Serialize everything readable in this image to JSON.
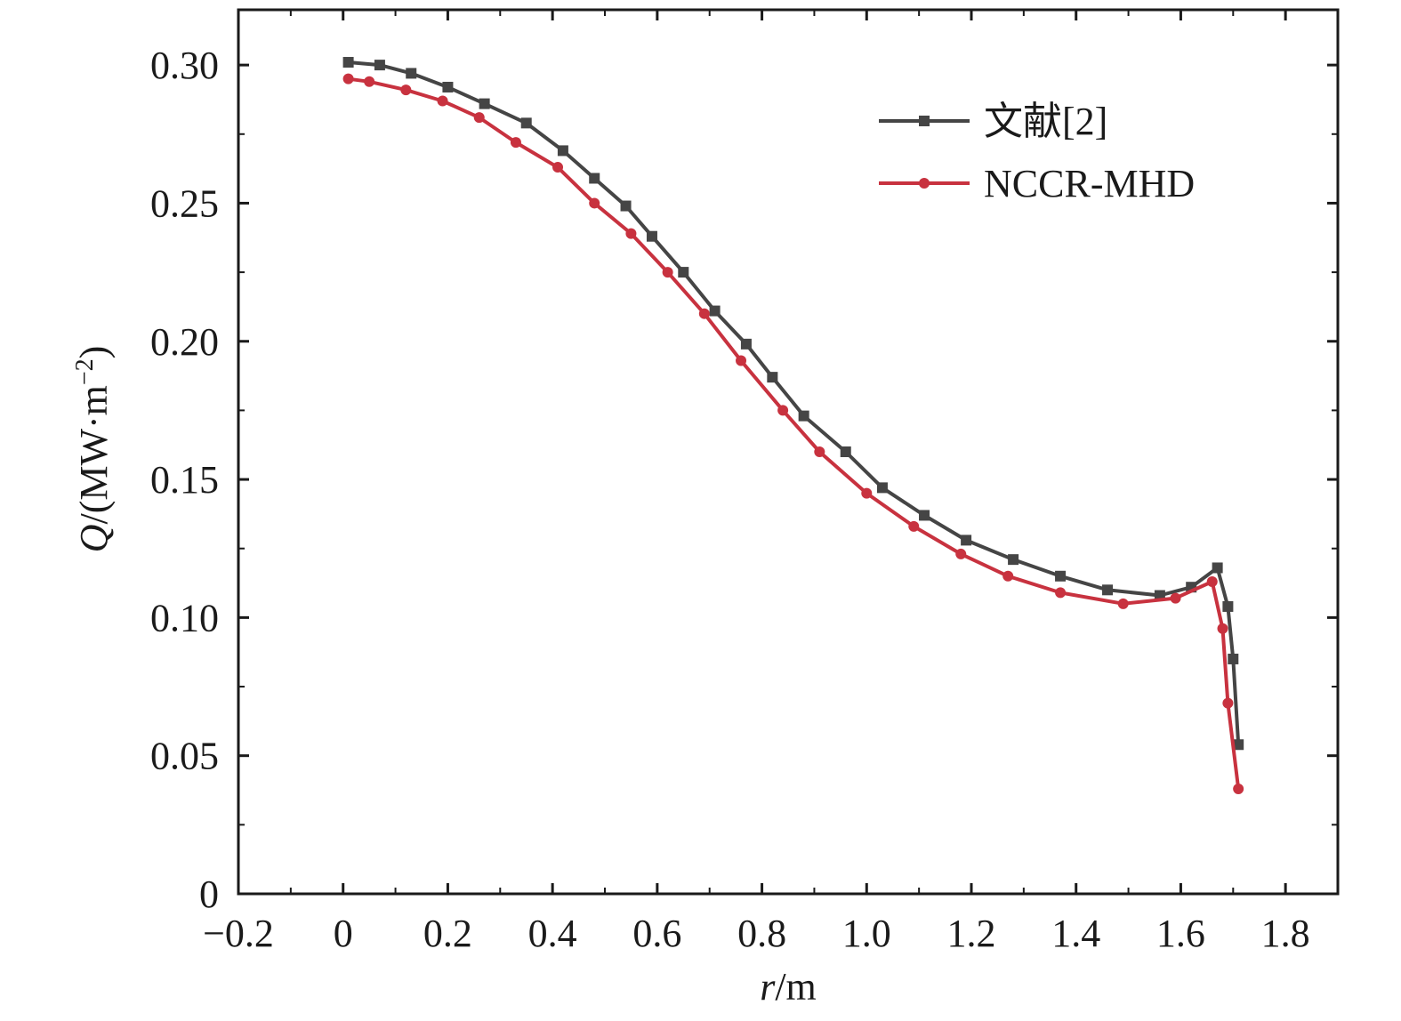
{
  "chart_data": {
    "type": "line",
    "xlabel": {
      "var": "r",
      "unit": "/m"
    },
    "ylabel": {
      "var": "Q",
      "unit": "/(MW·m",
      "exp": "−2",
      "close": ")"
    },
    "xlim": [
      -0.2,
      1.9
    ],
    "ylim": [
      0,
      0.32
    ],
    "x_ticks": [
      -0.2,
      0,
      0.2,
      0.4,
      0.6,
      0.8,
      1.0,
      1.2,
      1.4,
      1.6,
      1.8
    ],
    "x_tick_labels": [
      "−0.2",
      "0",
      "0.2",
      "0.4",
      "0.6",
      "0.8",
      "1.0",
      "1.2",
      "1.4",
      "1.6",
      "1.8"
    ],
    "y_ticks": [
      0,
      0.05,
      0.1,
      0.15,
      0.2,
      0.25,
      0.3
    ],
    "y_tick_labels": [
      "0",
      "0.05",
      "0.10",
      "0.15",
      "0.20",
      "0.25",
      "0.30"
    ],
    "grid": false,
    "legend_position": "top-right",
    "series": [
      {
        "name": "文献[2]",
        "color": "#454545",
        "marker": "square",
        "x": [
          0.01,
          0.07,
          0.13,
          0.2,
          0.27,
          0.35,
          0.42,
          0.48,
          0.54,
          0.59,
          0.65,
          0.71,
          0.77,
          0.82,
          0.88,
          0.96,
          1.03,
          1.11,
          1.19,
          1.28,
          1.37,
          1.46,
          1.56,
          1.62,
          1.67,
          1.69,
          1.7,
          1.71
        ],
        "y": [
          0.301,
          0.3,
          0.297,
          0.292,
          0.286,
          0.279,
          0.269,
          0.259,
          0.249,
          0.238,
          0.225,
          0.211,
          0.199,
          0.187,
          0.173,
          0.16,
          0.147,
          0.137,
          0.128,
          0.121,
          0.115,
          0.11,
          0.108,
          0.111,
          0.118,
          0.104,
          0.085,
          0.054
        ]
      },
      {
        "name": "NCCR-MHD",
        "color": "#c8323f",
        "marker": "circle",
        "x": [
          0.01,
          0.05,
          0.12,
          0.19,
          0.26,
          0.33,
          0.41,
          0.48,
          0.55,
          0.62,
          0.69,
          0.76,
          0.84,
          0.91,
          1.0,
          1.09,
          1.18,
          1.27,
          1.37,
          1.49,
          1.59,
          1.66,
          1.68,
          1.69,
          1.71
        ],
        "y": [
          0.295,
          0.294,
          0.291,
          0.287,
          0.281,
          0.272,
          0.263,
          0.25,
          0.239,
          0.225,
          0.21,
          0.193,
          0.175,
          0.16,
          0.145,
          0.133,
          0.123,
          0.115,
          0.109,
          0.105,
          0.107,
          0.113,
          0.096,
          0.069,
          0.038
        ]
      }
    ]
  }
}
